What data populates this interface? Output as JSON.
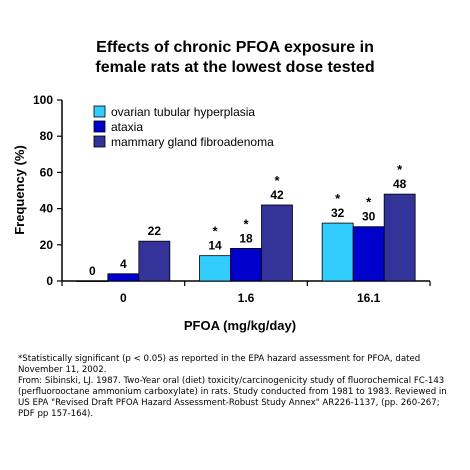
{
  "title_lines": [
    "Effects of chronic PFOA exposure in",
    "female rats at the lowest dose tested"
  ],
  "chart_data": {
    "type": "bar",
    "title": "Effects of chronic PFOA exposure in female rats at the lowest dose tested",
    "xlabel": "PFOA (mg/kg/day)",
    "ylabel": "Frequency (%)",
    "ylim": [
      0,
      100
    ],
    "yticks": [
      0,
      20,
      40,
      60,
      80,
      100
    ],
    "grid": false,
    "legend_position": "top-left",
    "categories": [
      "0",
      "1.6",
      "16.1"
    ],
    "series": [
      {
        "name": "ovarian tubular hyperplasia",
        "color": "#33ccff",
        "values": [
          0,
          14,
          32
        ],
        "labels": [
          "0",
          "14",
          "32"
        ],
        "significant": [
          false,
          true,
          true
        ]
      },
      {
        "name": "ataxia",
        "color": "#0000cc",
        "values": [
          4,
          18,
          30
        ],
        "labels": [
          "4",
          "18",
          "30"
        ],
        "significant": [
          false,
          true,
          true
        ]
      },
      {
        "name": "mammary gland fibroadenoma",
        "color": "#333399",
        "values": [
          22,
          42,
          48
        ],
        "labels": [
          "22",
          "42",
          "48"
        ],
        "significant": [
          false,
          true,
          true
        ]
      }
    ],
    "significance_marker": "*"
  },
  "footnote": {
    "significance": "*Statistically significant (p < 0.05) as reported in the EPA hazard assessment for PFOA, dated November 11, 2002.",
    "source": "From: Sibinski, LJ. 1987. Two-Year oral (diet) toxicity/carcinogenicity study of fluorochemical FC-143 (perfluorooctane ammonium carboxylate) in rats. Study conducted from 1981 to 1983. Reviewed in US EPA \"Revised Draft PFOA Hazard Assessment-Robust Study Annex\" AR226-1137, (pp. 260-267; PDF pp 157-164)."
  }
}
